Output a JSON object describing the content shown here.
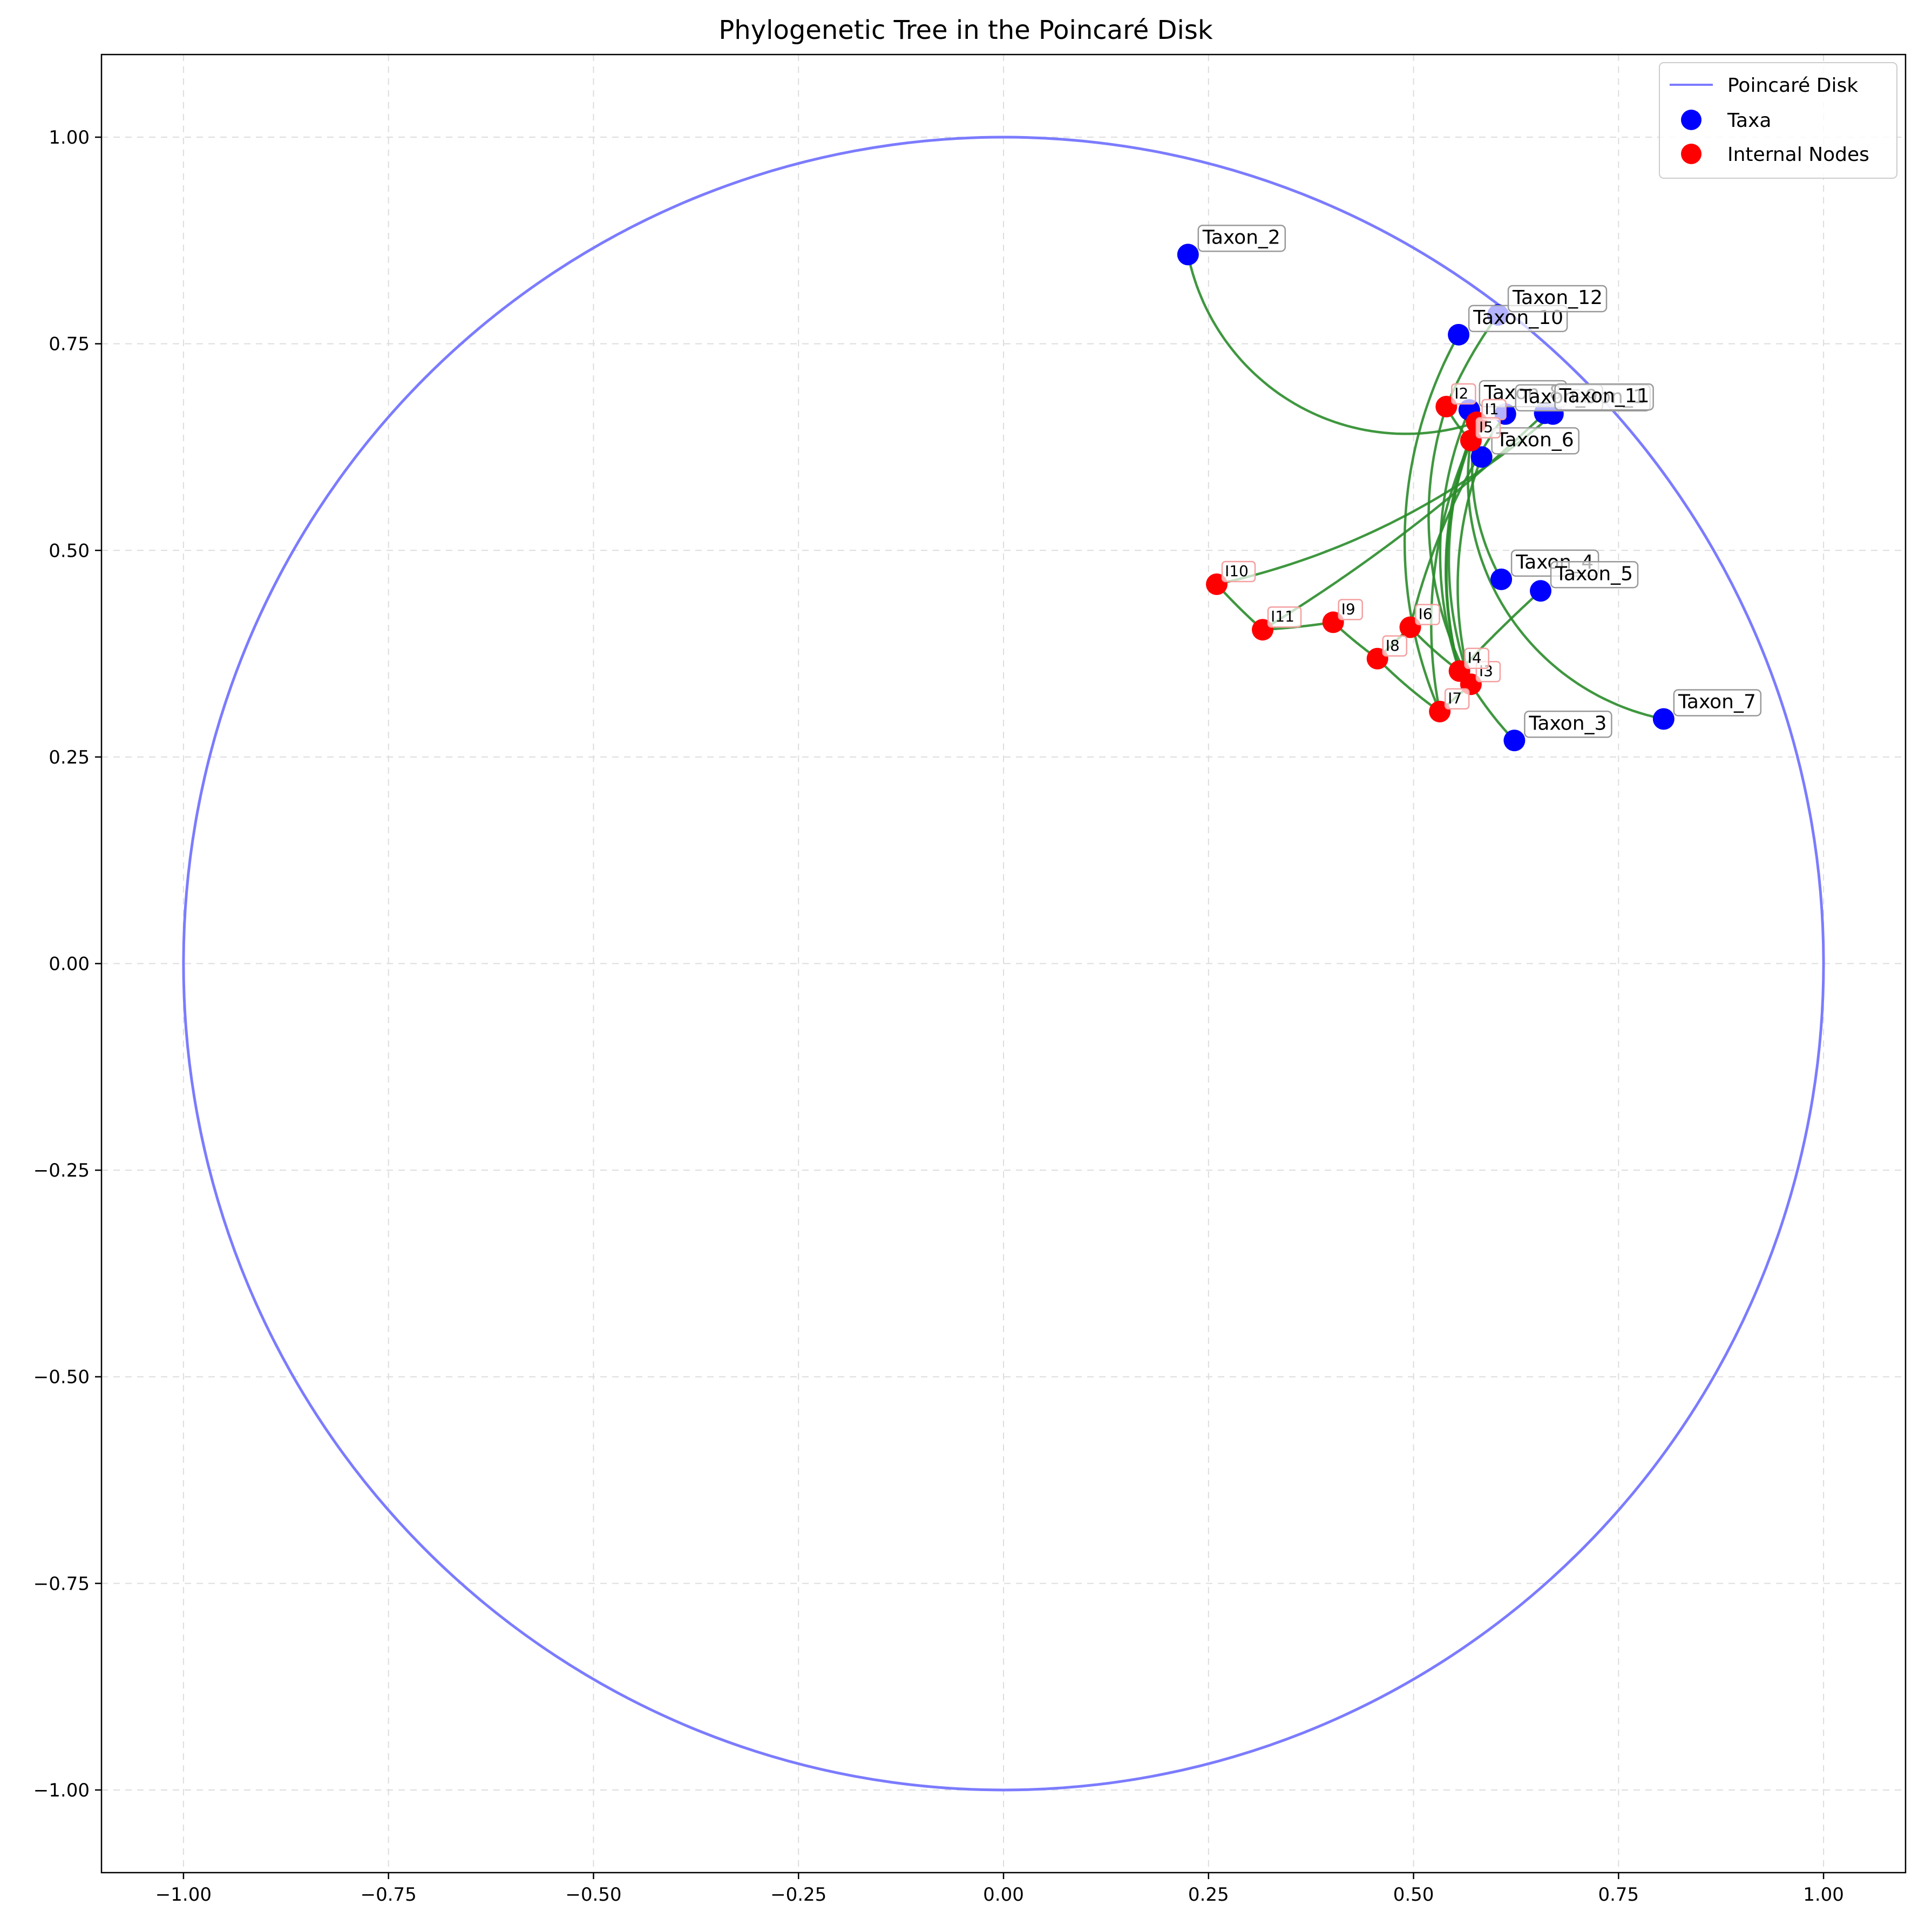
{
  "chart_data": {
    "type": "scatter",
    "title": "Phylogenetic Tree in the Poincaré Disk",
    "xlabel": "",
    "ylabel": "",
    "xlim": [
      -1.1,
      1.1
    ],
    "ylim": [
      -1.1,
      1.1
    ],
    "grid": true,
    "legend_position": "top-right",
    "x_ticks": [
      "-1.00",
      "-0.75",
      "-0.50",
      "-0.25",
      "0.00",
      "0.25",
      "0.50",
      "0.75",
      "1.00"
    ],
    "y_ticks": [
      "-1.00",
      "-0.75",
      "-0.50",
      "-0.25",
      "0.00",
      "0.25",
      "0.50",
      "0.75",
      "1.00"
    ],
    "legend": [
      {
        "label": "Poincaré Disk",
        "kind": "line",
        "color": "#7b7bff"
      },
      {
        "label": "Taxa",
        "kind": "marker",
        "color": "#0000ff"
      },
      {
        "label": "Internal Nodes",
        "kind": "marker",
        "color": "#ff0000"
      }
    ],
    "colors": {
      "disk": "#7b7bff",
      "taxa": "#0000ff",
      "internal": "#ff0000",
      "edges": "#2a8c2a"
    },
    "taxa": [
      {
        "label": "Taxon_1",
        "x": 0.67,
        "y": 0.665
      },
      {
        "label": "Taxon_2",
        "x": 0.225,
        "y": 0.858
      },
      {
        "label": "Taxon_3",
        "x": 0.623,
        "y": 0.27
      },
      {
        "label": "Taxon_4",
        "x": 0.607,
        "y": 0.465
      },
      {
        "label": "Taxon_5",
        "x": 0.655,
        "y": 0.451
      },
      {
        "label": "Taxon_6",
        "x": 0.583,
        "y": 0.613
      },
      {
        "label": "Taxon_7",
        "x": 0.805,
        "y": 0.296
      },
      {
        "label": "Taxon_8",
        "x": 0.568,
        "y": 0.67
      },
      {
        "label": "Taxon_9",
        "x": 0.612,
        "y": 0.665
      },
      {
        "label": "Taxon_10",
        "x": 0.555,
        "y": 0.761
      },
      {
        "label": "Taxon_11",
        "x": 0.66,
        "y": 0.666
      },
      {
        "label": "Taxon_12",
        "x": 0.603,
        "y": 0.785
      }
    ],
    "internal_nodes": [
      {
        "label": "I1",
        "x": 0.577,
        "y": 0.655
      },
      {
        "label": "I2",
        "x": 0.54,
        "y": 0.674
      },
      {
        "label": "I3",
        "x": 0.57,
        "y": 0.338
      },
      {
        "label": "I4",
        "x": 0.556,
        "y": 0.354
      },
      {
        "label": "I5",
        "x": 0.57,
        "y": 0.633
      },
      {
        "label": "I6",
        "x": 0.496,
        "y": 0.407
      },
      {
        "label": "I7",
        "x": 0.532,
        "y": 0.305
      },
      {
        "label": "I8",
        "x": 0.456,
        "y": 0.369
      },
      {
        "label": "I9",
        "x": 0.402,
        "y": 0.413
      },
      {
        "label": "I10",
        "x": 0.26,
        "y": 0.459
      },
      {
        "label": "I11",
        "x": 0.316,
        "y": 0.404
      }
    ]
  }
}
